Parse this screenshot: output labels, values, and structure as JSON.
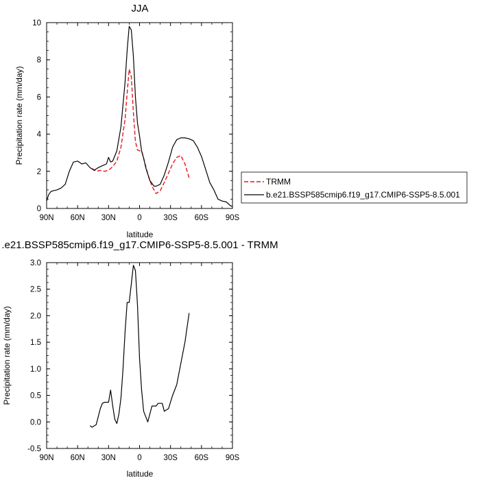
{
  "chart_data": [
    {
      "type": "line",
      "title": "JJA",
      "xlabel": "latitude",
      "ylabel": "Precipitation rate (mm/day)",
      "xlim": [
        90,
        -90
      ],
      "ylim": [
        0,
        10
      ],
      "xticks": [
        90,
        60,
        30,
        0,
        -30,
        -60,
        -90
      ],
      "xticklabels": [
        "90N",
        "60N",
        "30N",
        "0",
        "30S",
        "60S",
        "90S"
      ],
      "yticks": [
        0,
        2,
        4,
        6,
        8,
        10
      ],
      "yticklabels": [
        "0",
        "2",
        "4",
        "6",
        "8",
        "10"
      ],
      "legend_position": "right",
      "series": [
        {
          "name": "TRMM",
          "color": "#e8141c",
          "dash": "dashed",
          "x": [
            46,
            42,
            38,
            34,
            30,
            26,
            22,
            18,
            14,
            12,
            10,
            8,
            6,
            4,
            2,
            0,
            -2,
            -4,
            -8,
            -12,
            -16,
            -20,
            -24,
            -28,
            -32,
            -36,
            -40,
            -44,
            -48
          ],
          "y": [
            2.15,
            2.0,
            2.05,
            2.0,
            2.05,
            2.25,
            2.55,
            3.3,
            4.8,
            6.2,
            7.5,
            7.1,
            5.2,
            3.6,
            3.15,
            3.1,
            3.1,
            2.7,
            1.85,
            1.2,
            0.8,
            0.95,
            1.4,
            1.9,
            2.4,
            2.75,
            2.85,
            2.4,
            1.65
          ]
        },
        {
          "name": "b.e21.BSSP585cmip6.f19_g17.CMIP6-SSP5-8.5.001",
          "color": "#000000",
          "dash": "solid",
          "x": [
            90,
            88,
            86,
            84,
            80,
            76,
            72,
            68,
            64,
            60,
            56,
            52,
            48,
            44,
            40,
            36,
            32,
            30,
            28,
            26,
            22,
            18,
            14,
            12,
            10,
            8,
            6,
            4,
            2,
            0,
            -2,
            -4,
            -6,
            -10,
            -14,
            -16,
            -20,
            -24,
            -28,
            -32,
            -36,
            -40,
            -44,
            -48,
            -52,
            -56,
            -60,
            -64,
            -68,
            -72,
            -76,
            -80,
            -84,
            -88,
            -90
          ],
          "y": [
            0.4,
            0.75,
            0.9,
            0.95,
            1.0,
            1.1,
            1.3,
            2.0,
            2.5,
            2.55,
            2.4,
            2.45,
            2.2,
            2.05,
            2.2,
            2.3,
            2.4,
            2.75,
            2.5,
            2.55,
            3.1,
            4.4,
            6.8,
            8.5,
            9.8,
            9.6,
            8.2,
            6.0,
            4.6,
            3.9,
            3.1,
            2.7,
            2.2,
            1.5,
            1.2,
            1.2,
            1.3,
            1.8,
            2.5,
            3.3,
            3.7,
            3.8,
            3.8,
            3.75,
            3.65,
            3.3,
            2.8,
            2.1,
            1.4,
            1.0,
            0.5,
            0.4,
            0.35,
            0.15,
            0.1
          ]
        }
      ]
    },
    {
      "type": "line",
      "title": ".e21.BSSP585cmip6.f19_g17.CMIP6-SSP5-8.5.001 - TRMM",
      "xlabel": "latitude",
      "ylabel": "Precipitation rate (mm/day)",
      "xlim": [
        90,
        -90
      ],
      "ylim": [
        -0.5,
        3.0
      ],
      "xticks": [
        90,
        60,
        30,
        0,
        -30,
        -60,
        -90
      ],
      "xticklabels": [
        "90N",
        "60N",
        "30N",
        "0",
        "30S",
        "60S",
        "90S"
      ],
      "yticks": [
        -0.5,
        0.0,
        0.5,
        1.0,
        1.5,
        2.0,
        2.5,
        3.0
      ],
      "yticklabels": [
        "-0.5",
        "0.0",
        "0.5",
        "1.0",
        "1.5",
        "2.0",
        "2.5",
        "3.0"
      ],
      "series": [
        {
          "color": "#000000",
          "dash": "solid",
          "x": [
            48,
            46,
            42,
            40,
            38,
            36,
            34,
            30,
            28,
            26,
            24,
            22,
            20,
            18,
            16,
            14,
            12,
            10,
            8,
            6,
            4,
            2,
            0,
            -2,
            -4,
            -8,
            -12,
            -16,
            -18,
            -22,
            -24,
            -28,
            -32,
            -36,
            -40,
            -44,
            -48
          ],
          "y": [
            -0.07,
            -0.1,
            -0.05,
            0.1,
            0.25,
            0.35,
            0.37,
            0.37,
            0.6,
            0.3,
            0.05,
            -0.03,
            0.15,
            0.45,
            1.0,
            1.7,
            2.25,
            2.25,
            2.6,
            2.95,
            2.85,
            2.2,
            1.2,
            0.6,
            0.2,
            0.0,
            0.3,
            0.3,
            0.35,
            0.35,
            0.2,
            0.25,
            0.5,
            0.7,
            1.1,
            1.5,
            2.05
          ]
        }
      ]
    }
  ]
}
